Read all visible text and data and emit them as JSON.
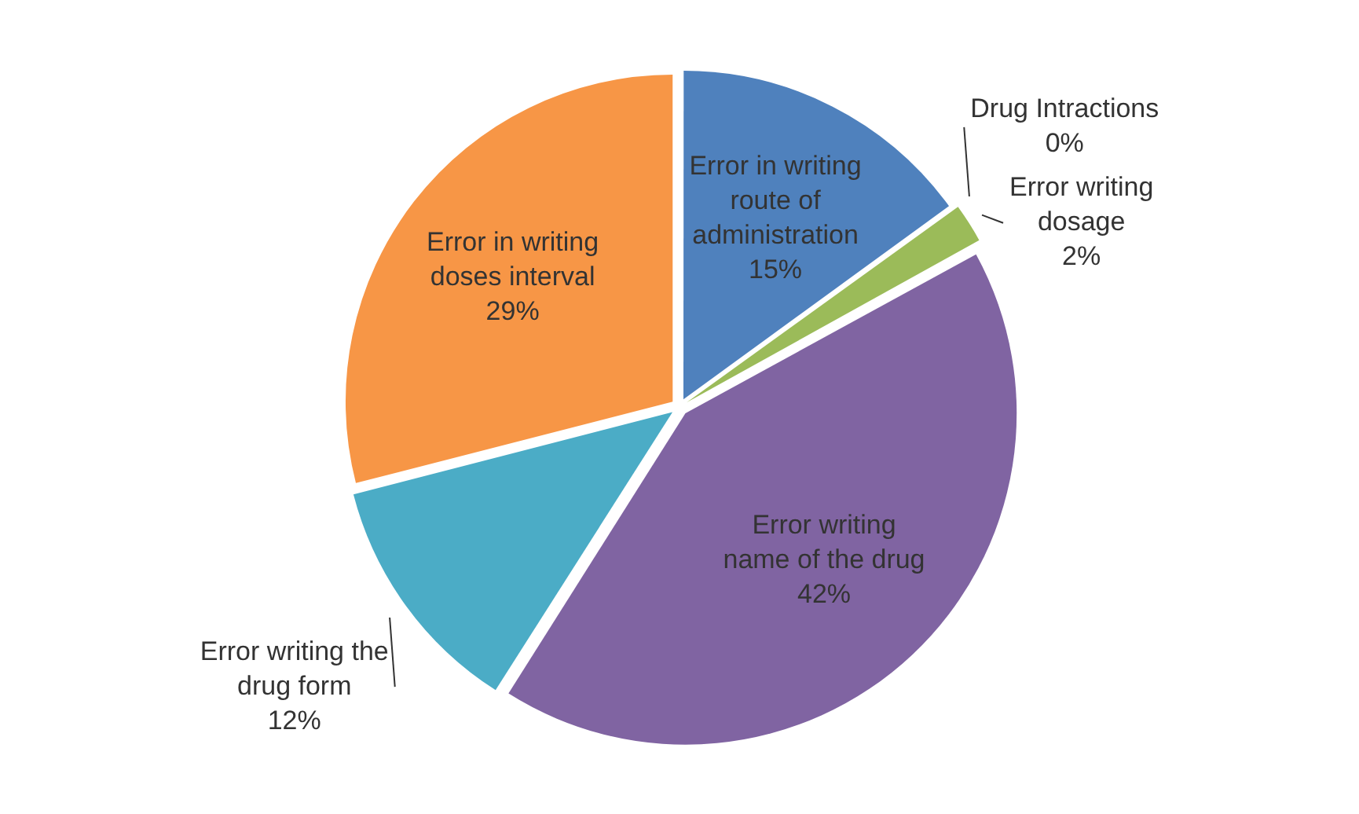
{
  "chart_data": {
    "type": "pie",
    "categories": [
      "Error in writing route of administration",
      "Drug Intractions",
      "Error writing dosage",
      "Error writing name of the drug",
      "Error writing the drug form",
      "Error in writing doses interval"
    ],
    "values": [
      15,
      0,
      2,
      42,
      12,
      29
    ],
    "value_labels": [
      "15%",
      "0%",
      "2%",
      "42%",
      "12%",
      "29%"
    ],
    "colors": [
      "#4f81bd",
      "#c0504d",
      "#9bbb59",
      "#8064a2",
      "#4bacc6",
      "#f79646"
    ],
    "legend": false
  }
}
